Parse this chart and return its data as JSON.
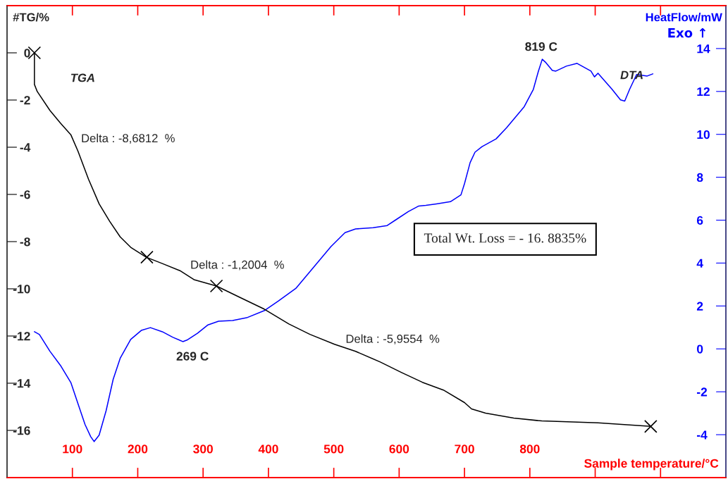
{
  "chart_data": {
    "type": "line",
    "xlabel": "Sample temperature/°C",
    "ylabel": "#TG/%",
    "y2label": "HeatFlow/mW",
    "xlim": [
      0,
      1100
    ],
    "xticks": [
      100,
      200,
      300,
      400,
      500,
      600,
      700,
      800,
      {
        "value": 900,
        "label": null
      },
      {
        "value": 1000,
        "label": null
      }
    ],
    "ylim": [
      -18,
      2
    ],
    "yticks": [
      -16,
      -14,
      -12,
      -10,
      -8,
      -6,
      -4,
      -2,
      0
    ],
    "y2lim": [
      -6,
      16
    ],
    "y2ticks": [
      -4,
      -2,
      0,
      2,
      4,
      6,
      8,
      10,
      12,
      14
    ],
    "grid": false,
    "series": [
      {
        "color": "#000000",
        "x": [
          41.9,
          41.9,
          46.2,
          65.6,
          81.7,
          97.8,
          108.6,
          124.7,
          140.9,
          157,
          173.1,
          189.2,
          212.9,
          237.6,
          264.5,
          286,
          320.4,
          355.9,
          393.5,
          431.2,
          463.4,
          501.1,
          533.3,
          571,
          603.2,
          635.5,
          667.7,
          700,
          710.8,
          732.3,
          775.3,
          818.3,
          904.3,
          985
        ],
        "values": [
          0,
          -1.34,
          -1.64,
          -2.44,
          -2.98,
          -3.48,
          -4.17,
          -5.36,
          -6.4,
          -7.14,
          -7.8,
          -8.24,
          -8.66,
          -8.93,
          -9.23,
          -9.61,
          -9.88,
          -10.36,
          -10.86,
          -11.49,
          -11.93,
          -12.35,
          -12.65,
          -13.1,
          -13.54,
          -13.96,
          -14.29,
          -14.82,
          -15.09,
          -15.27,
          -15.48,
          -15.6,
          -15.68,
          -15.83
        ]
      },
      {
        "type": "scatter",
        "color": "#000000",
        "marker": "cross",
        "x": [
          41.9,
          214,
          320.4,
          985
        ],
        "values": [
          0,
          -8.66,
          -9.88,
          -15.83
        ]
      },
      {
        "axis": "y2",
        "color": "#0000ff",
        "x": [
          41.9,
          49.5,
          65.6,
          81.7,
          97.8,
          108.6,
          119.4,
          128,
          133.3,
          140.9,
          151.6,
          162.4,
          173.1,
          189.2,
          205.4,
          219.4,
          237.6,
          253.8,
          269,
          275.3,
          291.4,
          307.5,
          323.7,
          345.2,
          366.7,
          393.5,
          415.1,
          441.9,
          468.8,
          495.7,
          517.2,
          533.3,
          560.2,
          581.7,
          594.6,
          614,
          630.1,
          640.9,
          657,
          678.5,
          694.6,
          700,
          708.6,
          716.1,
          726.9,
          748.4,
          764.5,
          791.4,
          805.4,
          812.9,
          819,
          823.7,
          834.4,
          839.8,
          855.9,
          872,
          893.5,
          898.9,
          904.3,
          925.8,
          938.7,
          945.2,
          952.7,
          963.4,
          979.6,
          988.2
        ],
        "values": [
          0.8,
          0.67,
          -0.11,
          -0.77,
          -1.58,
          -2.56,
          -3.53,
          -4.09,
          -4.32,
          -4.02,
          -2.88,
          -1.42,
          -0.44,
          0.44,
          0.86,
          0.99,
          0.8,
          0.54,
          0.34,
          0.41,
          0.73,
          1.12,
          1.29,
          1.32,
          1.45,
          1.78,
          2.23,
          2.82,
          3.79,
          4.77,
          5.42,
          5.59,
          5.65,
          5.75,
          6.01,
          6.4,
          6.66,
          6.69,
          6.76,
          6.86,
          7.18,
          7.7,
          8.68,
          9.17,
          9.43,
          9.79,
          10.31,
          11.29,
          12.1,
          12.92,
          13.5,
          13.37,
          12.98,
          12.95,
          13.18,
          13.31,
          12.95,
          12.68,
          12.85,
          12.1,
          11.61,
          11.55,
          12.1,
          12.79,
          12.72,
          12.82
        ]
      }
    ],
    "annotations": [
      "TGA",
      "DTA",
      "819 C",
      "269 C",
      "Delta : -8,6812  %",
      "Delta : -1,2004  %",
      "Delta : -5,9554  %",
      "Total Wt. Loss = - 16. 8835%",
      "Exo ↑"
    ]
  }
}
